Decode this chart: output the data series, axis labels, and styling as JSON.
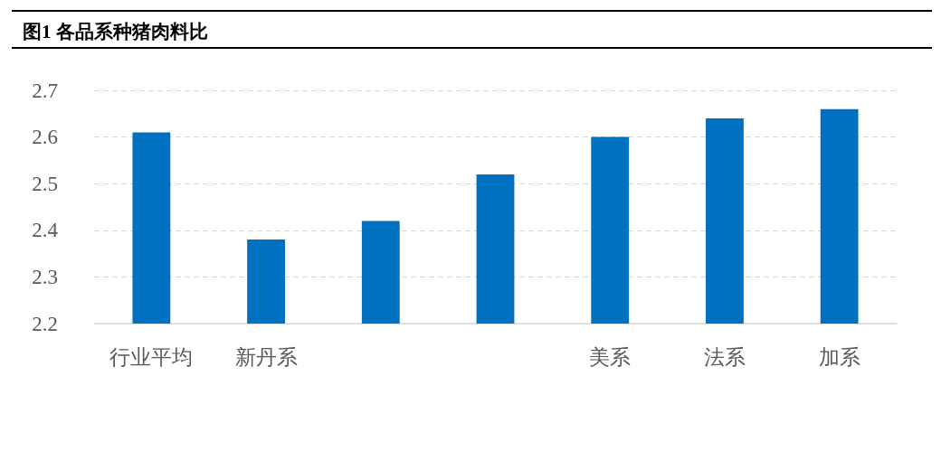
{
  "chart_data": {
    "type": "bar",
    "title": "图1 各品系种猪肉料比",
    "categories": [
      "行业平均",
      "新丹系",
      null,
      null,
      "美系",
      "法系",
      "加系"
    ],
    "values": [
      2.61,
      2.38,
      2.42,
      2.52,
      2.6,
      2.64,
      2.66
    ],
    "color": "#0070c0",
    "ylim": [
      2.2,
      2.7
    ],
    "yticks": [
      2.2,
      2.3,
      2.4,
      2.5,
      2.6,
      2.7
    ],
    "grid": "y"
  }
}
